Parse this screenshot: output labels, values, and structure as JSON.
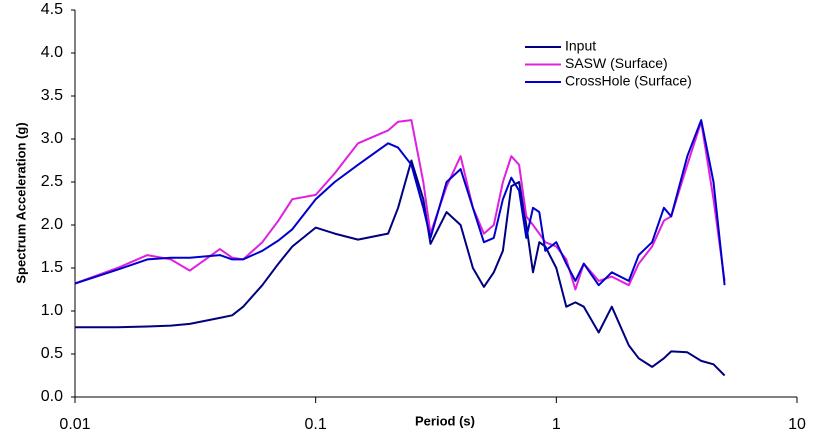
{
  "chart_data": {
    "type": "line",
    "xlabel": "Period (s)",
    "ylabel": "Spectrum Acceleration (g)",
    "log_x": true,
    "legend": "upper right",
    "xlim": [
      0.01,
      10
    ],
    "xticks": [
      0.01,
      0.1,
      1,
      10
    ],
    "ylim": [
      0,
      4.5
    ],
    "yticks": [
      {
        "value": 0,
        "label": "0.0"
      },
      0.5,
      {
        "value": 1,
        "label": "1.0"
      },
      1.5,
      {
        "value": 2,
        "label": "2.0"
      },
      2.5,
      {
        "value": 3,
        "label": "3.0"
      },
      3.5,
      {
        "value": 4,
        "label": "4.0"
      },
      4.5
    ],
    "x": [
      0.01,
      0.015,
      0.02,
      0.025,
      0.03,
      0.04,
      0.045,
      0.05,
      0.06,
      0.07,
      0.08,
      0.1,
      0.12,
      0.15,
      0.2,
      0.22,
      0.25,
      0.28,
      0.3,
      0.35,
      0.4,
      0.45,
      0.5,
      0.55,
      0.6,
      0.65,
      0.7,
      0.75,
      0.8,
      0.85,
      0.9,
      1.0,
      1.1,
      1.2,
      1.3,
      1.5,
      1.7,
      2.0,
      2.2,
      2.5,
      2.8,
      3.0,
      3.5,
      4.0,
      4.5,
      5.0
    ],
    "series": [
      {
        "name": "Input",
        "color": "#000080",
        "values": [
          0.81,
          0.81,
          0.82,
          0.83,
          0.85,
          0.92,
          0.95,
          1.05,
          1.3,
          1.55,
          1.75,
          1.97,
          1.9,
          1.83,
          1.9,
          2.2,
          2.75,
          2.3,
          1.78,
          2.15,
          2.0,
          1.5,
          1.28,
          1.45,
          1.7,
          2.45,
          2.5,
          2.0,
          1.45,
          1.8,
          1.75,
          1.5,
          1.05,
          1.1,
          1.05,
          0.75,
          1.05,
          0.6,
          0.45,
          0.35,
          0.45,
          0.53,
          0.52,
          0.42,
          0.38,
          0.25
        ]
      },
      {
        "name": "SASW (Surface)",
        "color": "#e020e0",
        "values": [
          1.32,
          1.5,
          1.65,
          1.6,
          1.47,
          1.72,
          1.62,
          1.6,
          1.8,
          2.05,
          2.3,
          2.35,
          2.6,
          2.95,
          3.1,
          3.2,
          3.22,
          2.5,
          1.9,
          2.45,
          2.8,
          2.2,
          1.9,
          2.0,
          2.5,
          2.8,
          2.7,
          2.1,
          2.0,
          1.9,
          1.8,
          1.75,
          1.6,
          1.25,
          1.55,
          1.35,
          1.4,
          1.3,
          1.55,
          1.75,
          2.05,
          2.1,
          2.7,
          3.2,
          2.3,
          1.35
        ]
      },
      {
        "name": "CrossHole (Surface)",
        "color": "#0000cc",
        "values": [
          1.32,
          1.48,
          1.6,
          1.62,
          1.62,
          1.65,
          1.6,
          1.6,
          1.7,
          1.82,
          1.95,
          2.3,
          2.5,
          2.7,
          2.95,
          2.9,
          2.7,
          2.2,
          1.85,
          2.5,
          2.65,
          2.2,
          1.8,
          1.85,
          2.3,
          2.55,
          2.4,
          1.85,
          2.2,
          2.15,
          1.7,
          1.8,
          1.55,
          1.35,
          1.55,
          1.3,
          1.45,
          1.35,
          1.65,
          1.8,
          2.2,
          2.1,
          2.8,
          3.22,
          2.5,
          1.3
        ]
      }
    ]
  }
}
